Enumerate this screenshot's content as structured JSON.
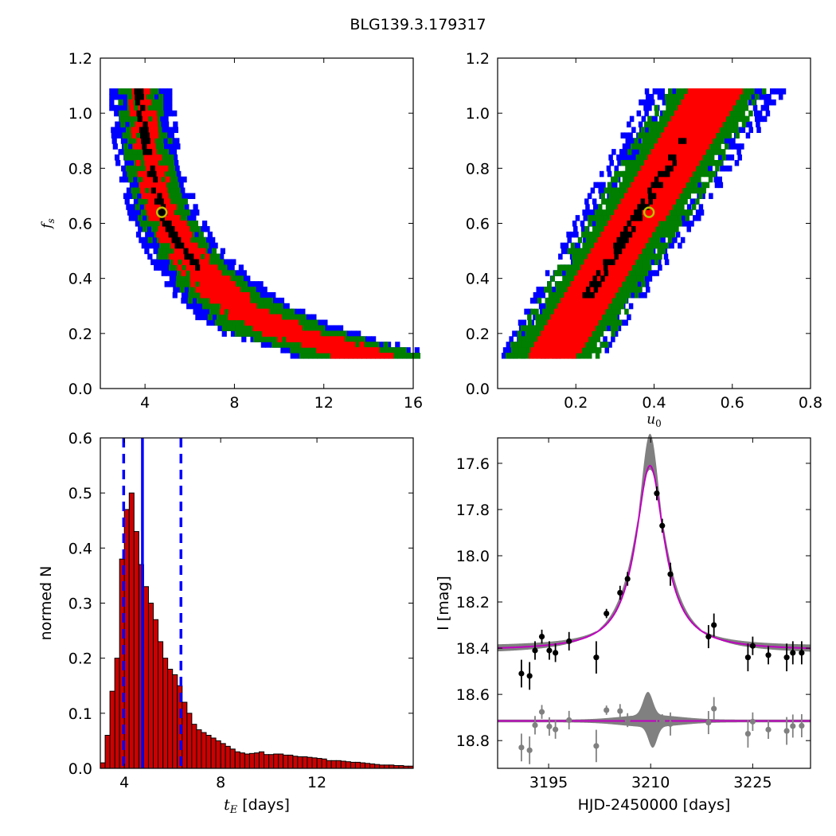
{
  "figure": {
    "title": "BLG139.3.179317"
  },
  "colors": {
    "blue": "#0000ff",
    "green": "#007f00",
    "red": "#ff0000",
    "black": "#000000",
    "hist_fill": "#cc0000",
    "model_gray": "#808080",
    "magenta": "#bf00bf",
    "best_fit_marker": "#bfbf00"
  },
  "chart_data": [
    {
      "id": "fs_vs_tE",
      "type": "heatmap",
      "title": "",
      "xlabel": "",
      "ylabel": "f_s",
      "xlim": [
        2,
        16
      ],
      "ylim": [
        0.0,
        1.2
      ],
      "xticks": [
        "4",
        "8",
        "12",
        "16"
      ],
      "xtick_values": [
        4,
        8,
        12,
        16
      ],
      "yticks": [
        "0.0",
        "0.2",
        "0.4",
        "0.6",
        "0.8",
        "1.0",
        "1.2"
      ],
      "ytick_values": [
        0.0,
        0.2,
        0.4,
        0.6,
        0.8,
        1.0,
        1.2
      ],
      "best_fit": {
        "x": 4.75,
        "y": 0.64
      },
      "confidence_band": {
        "levels": [
          "blue",
          "green",
          "red",
          "black"
        ],
        "fs": [
          1.08,
          1.0,
          0.9,
          0.8,
          0.7,
          0.6,
          0.5,
          0.4,
          0.3,
          0.2,
          0.12
        ],
        "tE_center": [
          3.7,
          3.8,
          4.0,
          4.2,
          4.5,
          4.9,
          5.6,
          6.6,
          7.9,
          10.0,
          13.5
        ],
        "half_width": {
          "blue": [
            1.3,
            1.4,
            1.5,
            1.5,
            1.5,
            1.6,
            1.7,
            2.0,
            2.4,
            3.0,
            3.0
          ],
          "green": [
            0.9,
            1.0,
            1.0,
            1.1,
            1.1,
            1.2,
            1.3,
            1.5,
            1.9,
            2.4,
            2.6
          ],
          "red": [
            0.5,
            0.5,
            0.6,
            0.6,
            0.7,
            0.7,
            0.8,
            0.9,
            1.1,
            1.4,
            1.4
          ],
          "black": [
            0.2,
            0.2,
            0.2,
            0.2,
            0.2,
            0.2,
            0.2,
            0.0,
            0.0,
            0.0,
            0.0
          ]
        }
      }
    },
    {
      "id": "fs_vs_u0",
      "type": "heatmap",
      "title": "",
      "xlabel": "u_0",
      "ylabel": "",
      "xlim": [
        0.0,
        0.8
      ],
      "ylim": [
        0.0,
        1.2
      ],
      "xticks": [
        "0.2",
        "0.4",
        "0.6",
        "0.8"
      ],
      "xtick_values": [
        0.2,
        0.4,
        0.6,
        0.8
      ],
      "yticks": [
        "0.0",
        "0.2",
        "0.4",
        "0.6",
        "0.8",
        "1.0",
        "1.2"
      ],
      "ytick_values": [
        0.0,
        0.2,
        0.4,
        0.6,
        0.8,
        1.0,
        1.2
      ],
      "best_fit": {
        "x": 0.387,
        "y": 0.64
      },
      "confidence_band": {
        "levels": [
          "blue",
          "green",
          "red",
          "black"
        ],
        "fs": [
          0.12,
          1.08
        ],
        "u0_center": [
          0.14,
          0.56
        ],
        "half_width": {
          "blue": [
            0.13,
            0.18
          ],
          "green": [
            0.12,
            0.13
          ],
          "red": [
            0.06,
            0.07
          ],
          "black": [
            0.015,
            0.015
          ]
        }
      }
    },
    {
      "id": "tE_histogram",
      "type": "bar",
      "title": "",
      "xlabel": "t_E [days]",
      "ylabel": "normed N",
      "xlim": [
        3.0,
        16.0
      ],
      "ylim": [
        0.0,
        0.6
      ],
      "xticks": [
        "4",
        "8",
        "12"
      ],
      "xtick_values": [
        4,
        8,
        12
      ],
      "yticks": [
        "0.0",
        "0.1",
        "0.2",
        "0.3",
        "0.4",
        "0.5",
        "0.6"
      ],
      "ytick_values": [
        0.0,
        0.1,
        0.2,
        0.3,
        0.4,
        0.5,
        0.6
      ],
      "bin_width": 0.2,
      "bin_start": 3.0,
      "values": [
        0.01,
        0.06,
        0.14,
        0.2,
        0.38,
        0.47,
        0.5,
        0.43,
        0.37,
        0.33,
        0.3,
        0.27,
        0.23,
        0.2,
        0.18,
        0.17,
        0.15,
        0.12,
        0.1,
        0.08,
        0.07,
        0.065,
        0.06,
        0.055,
        0.05,
        0.045,
        0.04,
        0.035,
        0.03,
        0.028,
        0.026,
        0.027,
        0.028,
        0.03,
        0.025,
        0.025,
        0.026,
        0.026,
        0.024,
        0.024,
        0.022,
        0.021,
        0.021,
        0.02,
        0.019,
        0.018,
        0.017,
        0.014,
        0.014,
        0.014,
        0.013,
        0.012,
        0.011,
        0.011,
        0.01,
        0.009,
        0.008,
        0.007,
        0.006,
        0.006,
        0.006,
        0.005,
        0.005,
        0.004,
        0.004
      ],
      "vlines": [
        {
          "x": 4.75,
          "style": "solid"
        },
        {
          "x": 3.97,
          "style": "dashed"
        },
        {
          "x": 6.35,
          "style": "dashed"
        }
      ]
    },
    {
      "id": "light_curve",
      "type": "scatter",
      "title": "",
      "xlabel": "HJD-2450000 [days]",
      "ylabel": "I [mag]",
      "xlim": [
        3187.5,
        3233.5
      ],
      "ylim": [
        18.92,
        17.49
      ],
      "y_inverted": true,
      "xticks": [
        "3195",
        "3210",
        "3225"
      ],
      "xtick_values": [
        3195,
        3210,
        3225
      ],
      "yticks": [
        "17.6",
        "17.8",
        "18.0",
        "18.2",
        "18.4",
        "18.6",
        "18.8"
      ],
      "ytick_values": [
        17.6,
        17.8,
        18.0,
        18.2,
        18.4,
        18.6,
        18.8
      ],
      "model": {
        "baseline_mag": 18.41,
        "peak_mag": 17.61,
        "peak_time": 3209.9,
        "band_peak_mag": 17.49,
        "band_width": 0.03
      },
      "residual_offset_mag": 18.715,
      "data": [
        {
          "x": 3191.0,
          "y": 18.51,
          "err": 0.06
        },
        {
          "x": 3192.2,
          "y": 18.52,
          "err": 0.06
        },
        {
          "x": 3193.0,
          "y": 18.41,
          "err": 0.04
        },
        {
          "x": 3194.0,
          "y": 18.35,
          "err": 0.03
        },
        {
          "x": 3195.1,
          "y": 18.41,
          "err": 0.04
        },
        {
          "x": 3196.0,
          "y": 18.42,
          "err": 0.04
        },
        {
          "x": 3198.0,
          "y": 18.37,
          "err": 0.04
        },
        {
          "x": 3202.0,
          "y": 18.44,
          "err": 0.07
        },
        {
          "x": 3203.5,
          "y": 18.25,
          "err": 0.02
        },
        {
          "x": 3205.5,
          "y": 18.16,
          "err": 0.03
        },
        {
          "x": 3206.6,
          "y": 18.1,
          "err": 0.03
        },
        {
          "x": 3210.9,
          "y": 17.73,
          "err": 0.03
        },
        {
          "x": 3211.7,
          "y": 17.87,
          "err": 0.03
        },
        {
          "x": 3212.9,
          "y": 18.08,
          "err": 0.05
        },
        {
          "x": 3218.5,
          "y": 18.35,
          "err": 0.05
        },
        {
          "x": 3219.3,
          "y": 18.3,
          "err": 0.05
        },
        {
          "x": 3224.3,
          "y": 18.44,
          "err": 0.06
        },
        {
          "x": 3225.0,
          "y": 18.39,
          "err": 0.04
        },
        {
          "x": 3227.3,
          "y": 18.43,
          "err": 0.04
        },
        {
          "x": 3230.0,
          "y": 18.44,
          "err": 0.06
        },
        {
          "x": 3230.9,
          "y": 18.42,
          "err": 0.05
        },
        {
          "x": 3232.2,
          "y": 18.42,
          "err": 0.05
        }
      ]
    }
  ]
}
